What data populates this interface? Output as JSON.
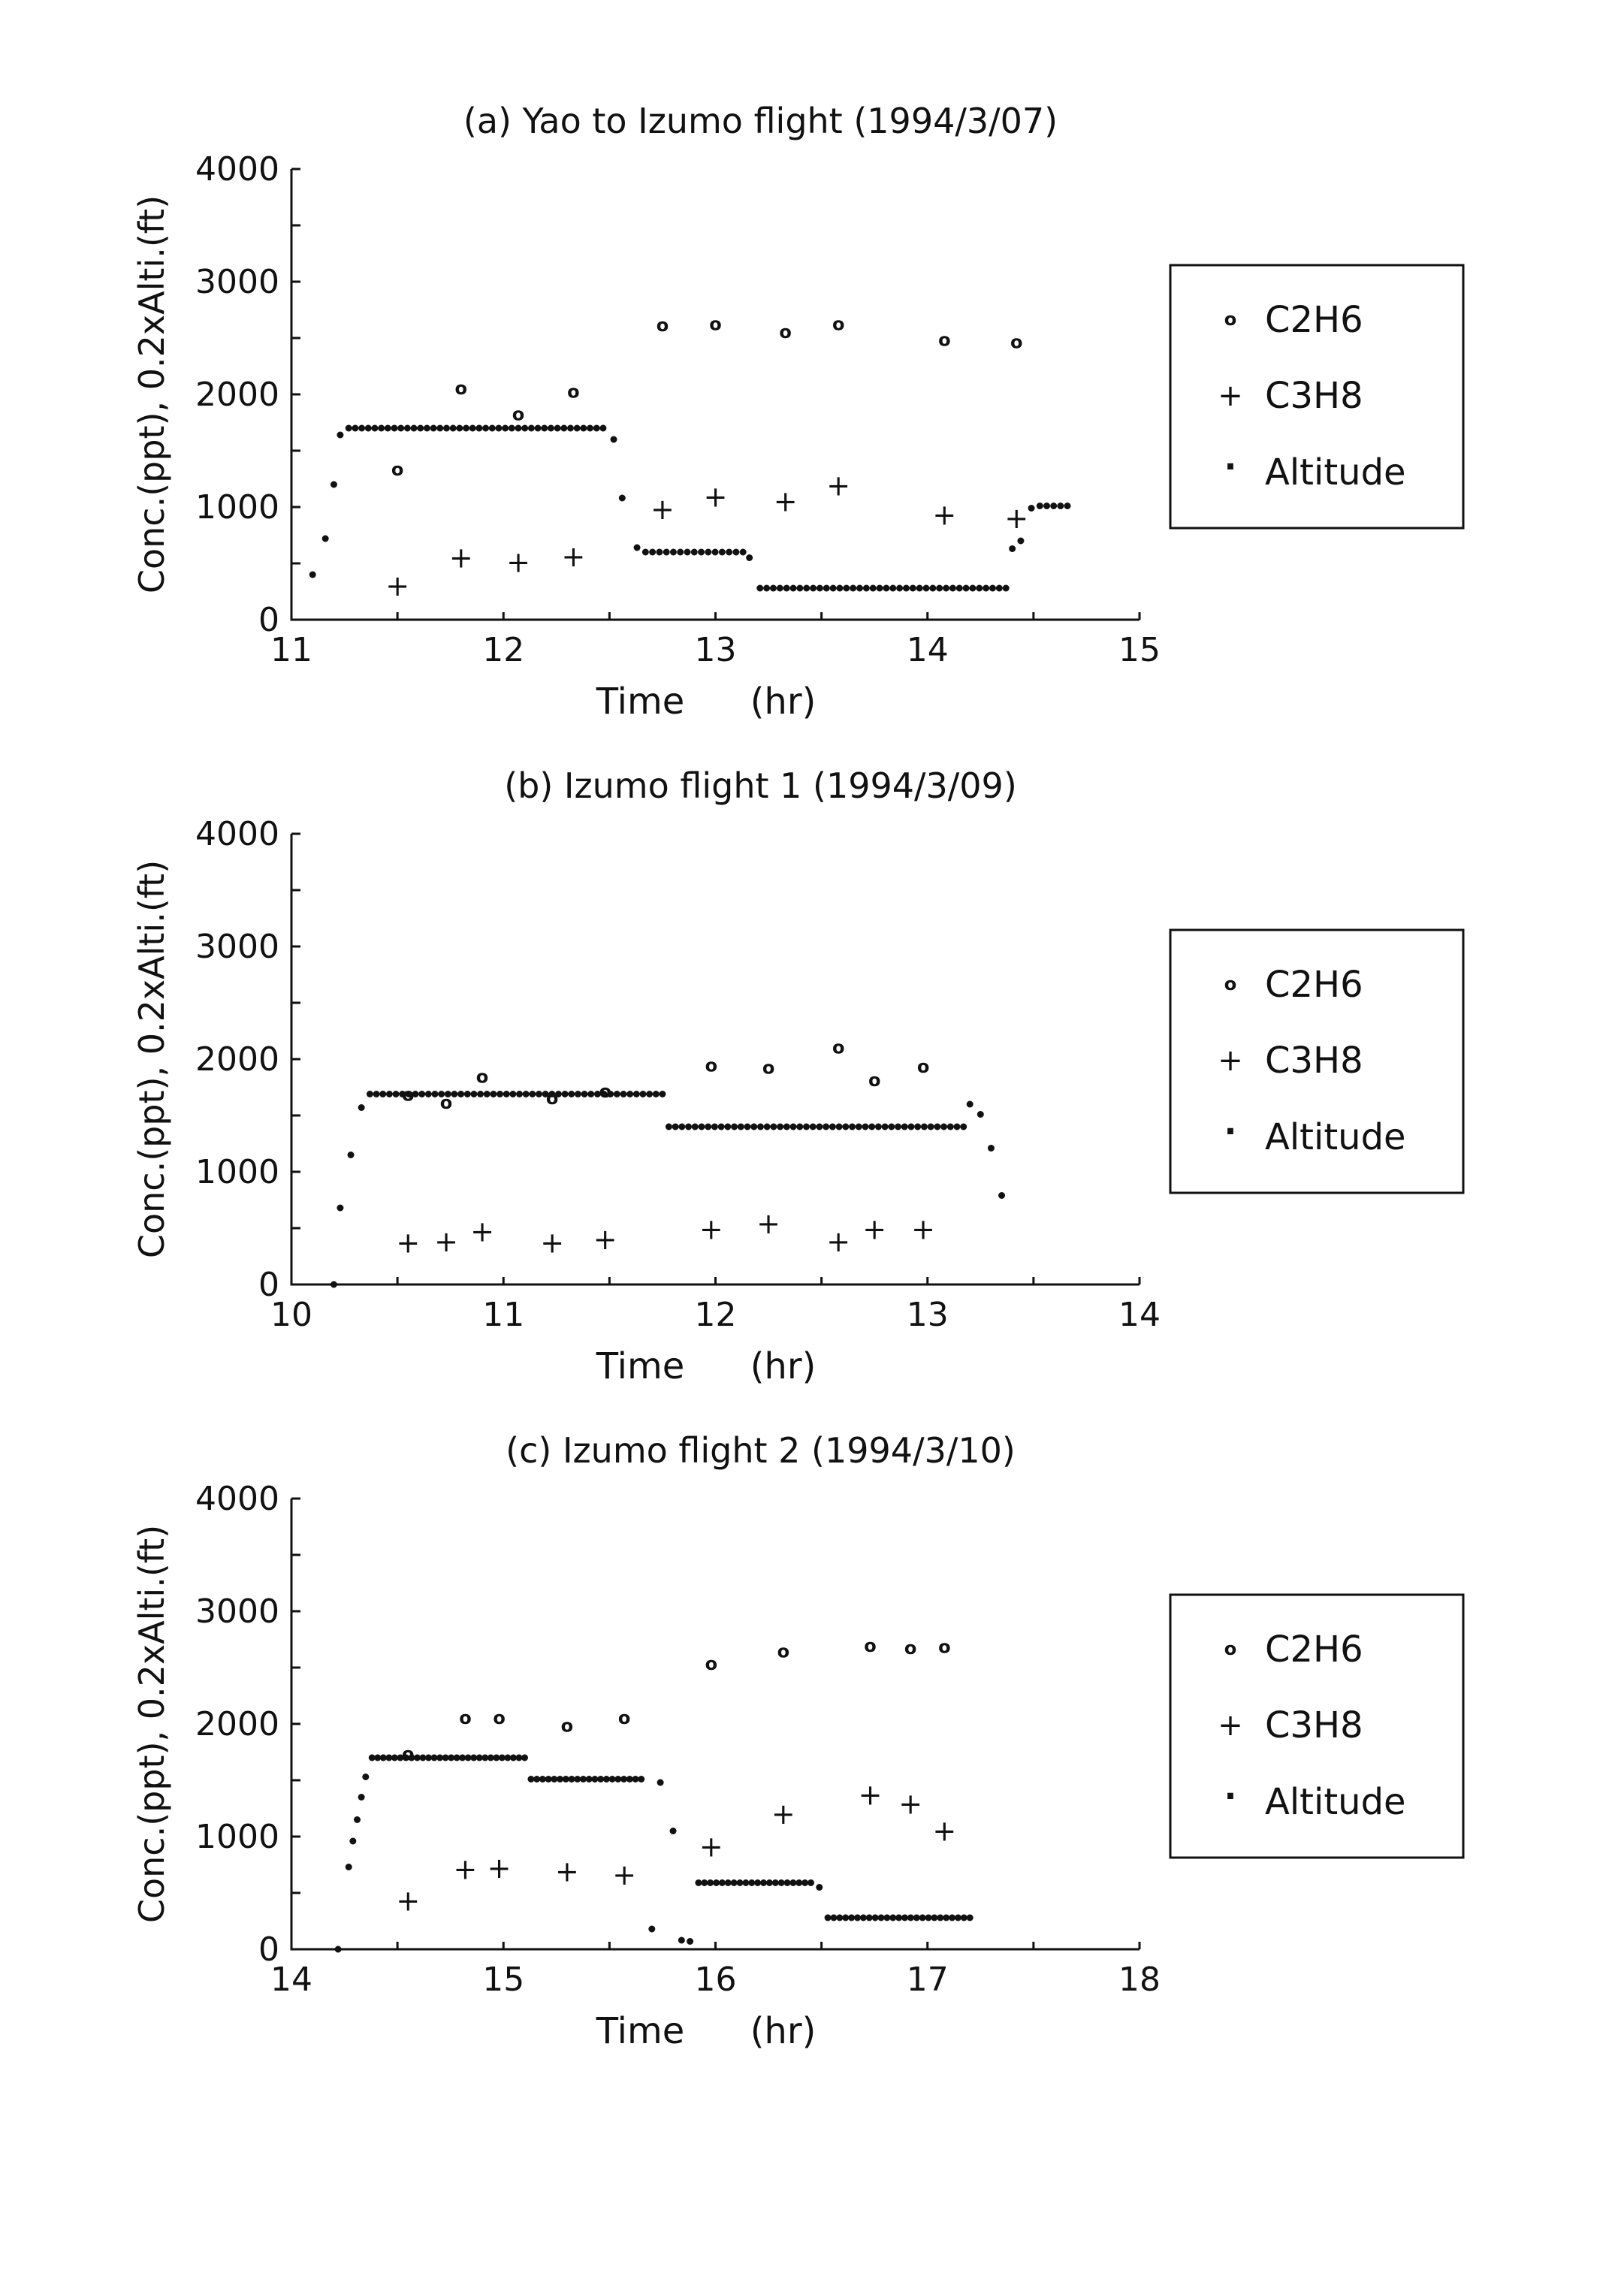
{
  "chart_data": [
    {
      "type": "scatter",
      "title": "(a) Yao to Izumo flight (1994/3/07)",
      "xlabel": "Time (hr)",
      "xlabel_parts": [
        "Time",
        "(hr)"
      ],
      "ylabel": "Conc.(ppt), 0.2xAlti.(ft)",
      "xlim": [
        11,
        15
      ],
      "ylim": [
        0,
        4000
      ],
      "xticks": [
        "11",
        "12",
        "13",
        "14",
        "15"
      ],
      "yticks": [
        "0",
        "1000",
        "2000",
        "3000",
        "4000"
      ],
      "legend": [
        "C2H6",
        "C3H8",
        "Altitude"
      ],
      "legend_symbols": [
        "o",
        "+",
        "·"
      ],
      "series": [
        {
          "name": "C2H6",
          "marker": "o",
          "x": [
            11.5,
            11.8,
            12.07,
            12.33,
            12.75,
            13.0,
            13.33,
            13.58,
            14.08,
            14.42
          ],
          "y": [
            1340,
            2060,
            1830,
            2030,
            2620,
            2630,
            2560,
            2630,
            2490,
            2470
          ]
        },
        {
          "name": "C3H8",
          "marker": "+",
          "x": [
            11.5,
            11.8,
            12.07,
            12.33,
            12.75,
            13.0,
            13.33,
            13.58,
            14.08,
            14.42
          ],
          "y": [
            300,
            550,
            510,
            560,
            980,
            1090,
            1050,
            1190,
            930,
            900
          ]
        },
        {
          "name": "Altitude",
          "marker": ".",
          "segments": [
            {
              "x": [
                11.1,
                11.16,
                11.2,
                11.23
              ],
              "y": [
                400,
                720,
                1200,
                1640
              ]
            },
            {
              "x_range": [
                11.27,
                12.47
              ],
              "y": 1700,
              "count": 40
            },
            {
              "x": [
                12.52,
                12.56
              ],
              "y": [
                1600,
                1080
              ]
            },
            {
              "x": [
                12.63
              ],
              "y": [
                640
              ]
            },
            {
              "x_range": [
                12.67,
                13.13
              ],
              "y": 600,
              "count": 15
            },
            {
              "x": [
                13.16
              ],
              "y": [
                550
              ]
            },
            {
              "x_range": [
                13.21,
                14.37
              ],
              "y": 280,
              "count": 38
            },
            {
              "x": [
                14.4,
                14.44,
                14.49
              ],
              "y": [
                630,
                700,
                990
              ]
            },
            {
              "x_range": [
                14.53,
                14.66
              ],
              "y": 1010,
              "count": 5
            }
          ]
        }
      ]
    },
    {
      "type": "scatter",
      "title": "(b) Izumo flight 1 (1994/3/09)",
      "xlabel": "Time (hr)",
      "xlabel_parts": [
        "Time",
        "(hr)"
      ],
      "ylabel": "Conc.(ppt), 0.2xAlti.(ft)",
      "xlim": [
        10,
        14
      ],
      "ylim": [
        0,
        4000
      ],
      "xticks": [
        "10",
        "11",
        "12",
        "13",
        "14"
      ],
      "yticks": [
        "0",
        "1000",
        "2000",
        "3000",
        "4000"
      ],
      "legend": [
        "C2H6",
        "C3H8",
        "Altitude"
      ],
      "legend_symbols": [
        "o",
        "+",
        "·"
      ],
      "series": [
        {
          "name": "C2H6",
          "marker": "o",
          "x": [
            10.55,
            10.73,
            10.9,
            11.23,
            11.48,
            11.98,
            12.25,
            12.58,
            12.75,
            12.98
          ],
          "y": [
            1690,
            1620,
            1850,
            1660,
            1720,
            1950,
            1930,
            2110,
            1820,
            1940
          ]
        },
        {
          "name": "C3H8",
          "marker": "+",
          "x": [
            10.55,
            10.73,
            10.9,
            11.23,
            11.48,
            11.98,
            12.25,
            12.58,
            12.75,
            12.98
          ],
          "y": [
            370,
            380,
            470,
            370,
            400,
            490,
            540,
            380,
            490,
            490
          ]
        },
        {
          "name": "Altitude",
          "marker": ".",
          "segments": [
            {
              "x": [
                10.2,
                10.23,
                10.28,
                10.33
              ],
              "y": [
                0,
                680,
                1150,
                1570
              ]
            },
            {
              "x_range": [
                10.37,
                11.75
              ],
              "y": 1690,
              "count": 46
            },
            {
              "x_range": [
                11.78,
                13.17
              ],
              "y": 1400,
              "count": 46
            },
            {
              "x": [
                13.2,
                13.25,
                13.3,
                13.35
              ],
              "y": [
                1600,
                1510,
                1210,
                790
              ]
            }
          ]
        }
      ]
    },
    {
      "type": "scatter",
      "title": "(c) Izumo flight 2 (1994/3/10)",
      "xlabel": "Time (hr)",
      "xlabel_parts": [
        "Time",
        "(hr)"
      ],
      "ylabel": "Conc.(ppt), 0.2xAlti.(ft)",
      "xlim": [
        14,
        18
      ],
      "ylim": [
        0,
        4000
      ],
      "xticks": [
        "14",
        "15",
        "16",
        "17",
        "18"
      ],
      "yticks": [
        "0",
        "1000",
        "2000",
        "3000",
        "4000"
      ],
      "legend": [
        "C2H6",
        "C3H8",
        "Altitude"
      ],
      "legend_symbols": [
        "o",
        "+",
        "·"
      ],
      "series": [
        {
          "name": "C2H6",
          "marker": "o",
          "x": [
            14.55,
            14.82,
            14.98,
            15.3,
            15.57,
            15.98,
            16.32,
            16.73,
            16.92,
            17.08
          ],
          "y": [
            1740,
            2060,
            2060,
            1990,
            2060,
            2540,
            2650,
            2700,
            2680,
            2690
          ]
        },
        {
          "name": "C3H8",
          "marker": "+",
          "x": [
            14.55,
            14.82,
            14.98,
            15.3,
            15.57,
            15.98,
            16.32,
            16.73,
            16.92,
            17.08
          ],
          "y": [
            430,
            710,
            720,
            690,
            660,
            910,
            1200,
            1370,
            1290,
            1050
          ]
        },
        {
          "name": "Altitude",
          "marker": ".",
          "segments": [
            {
              "x": [
                14.22,
                14.27,
                14.29,
                14.31,
                14.33,
                14.35
              ],
              "y": [
                0,
                730,
                960,
                1150,
                1350,
                1530
              ]
            },
            {
              "x_range": [
                14.38,
                15.1
              ],
              "y": 1700,
              "count": 28
            },
            {
              "x_range": [
                15.13,
                15.65
              ],
              "y": 1510,
              "count": 20
            },
            {
              "x": [
                15.74,
                15.8,
                15.7,
                15.84,
                15.88
              ],
              "y": [
                1480,
                1050,
                180,
                80,
                70
              ]
            },
            {
              "x_range": [
                15.92,
                16.45
              ],
              "y": 590,
              "count": 20
            },
            {
              "x": [
                16.49
              ],
              "y": [
                550
              ]
            },
            {
              "x_range": [
                16.53,
                17.2
              ],
              "y": 280,
              "count": 25
            }
          ]
        }
      ]
    }
  ]
}
